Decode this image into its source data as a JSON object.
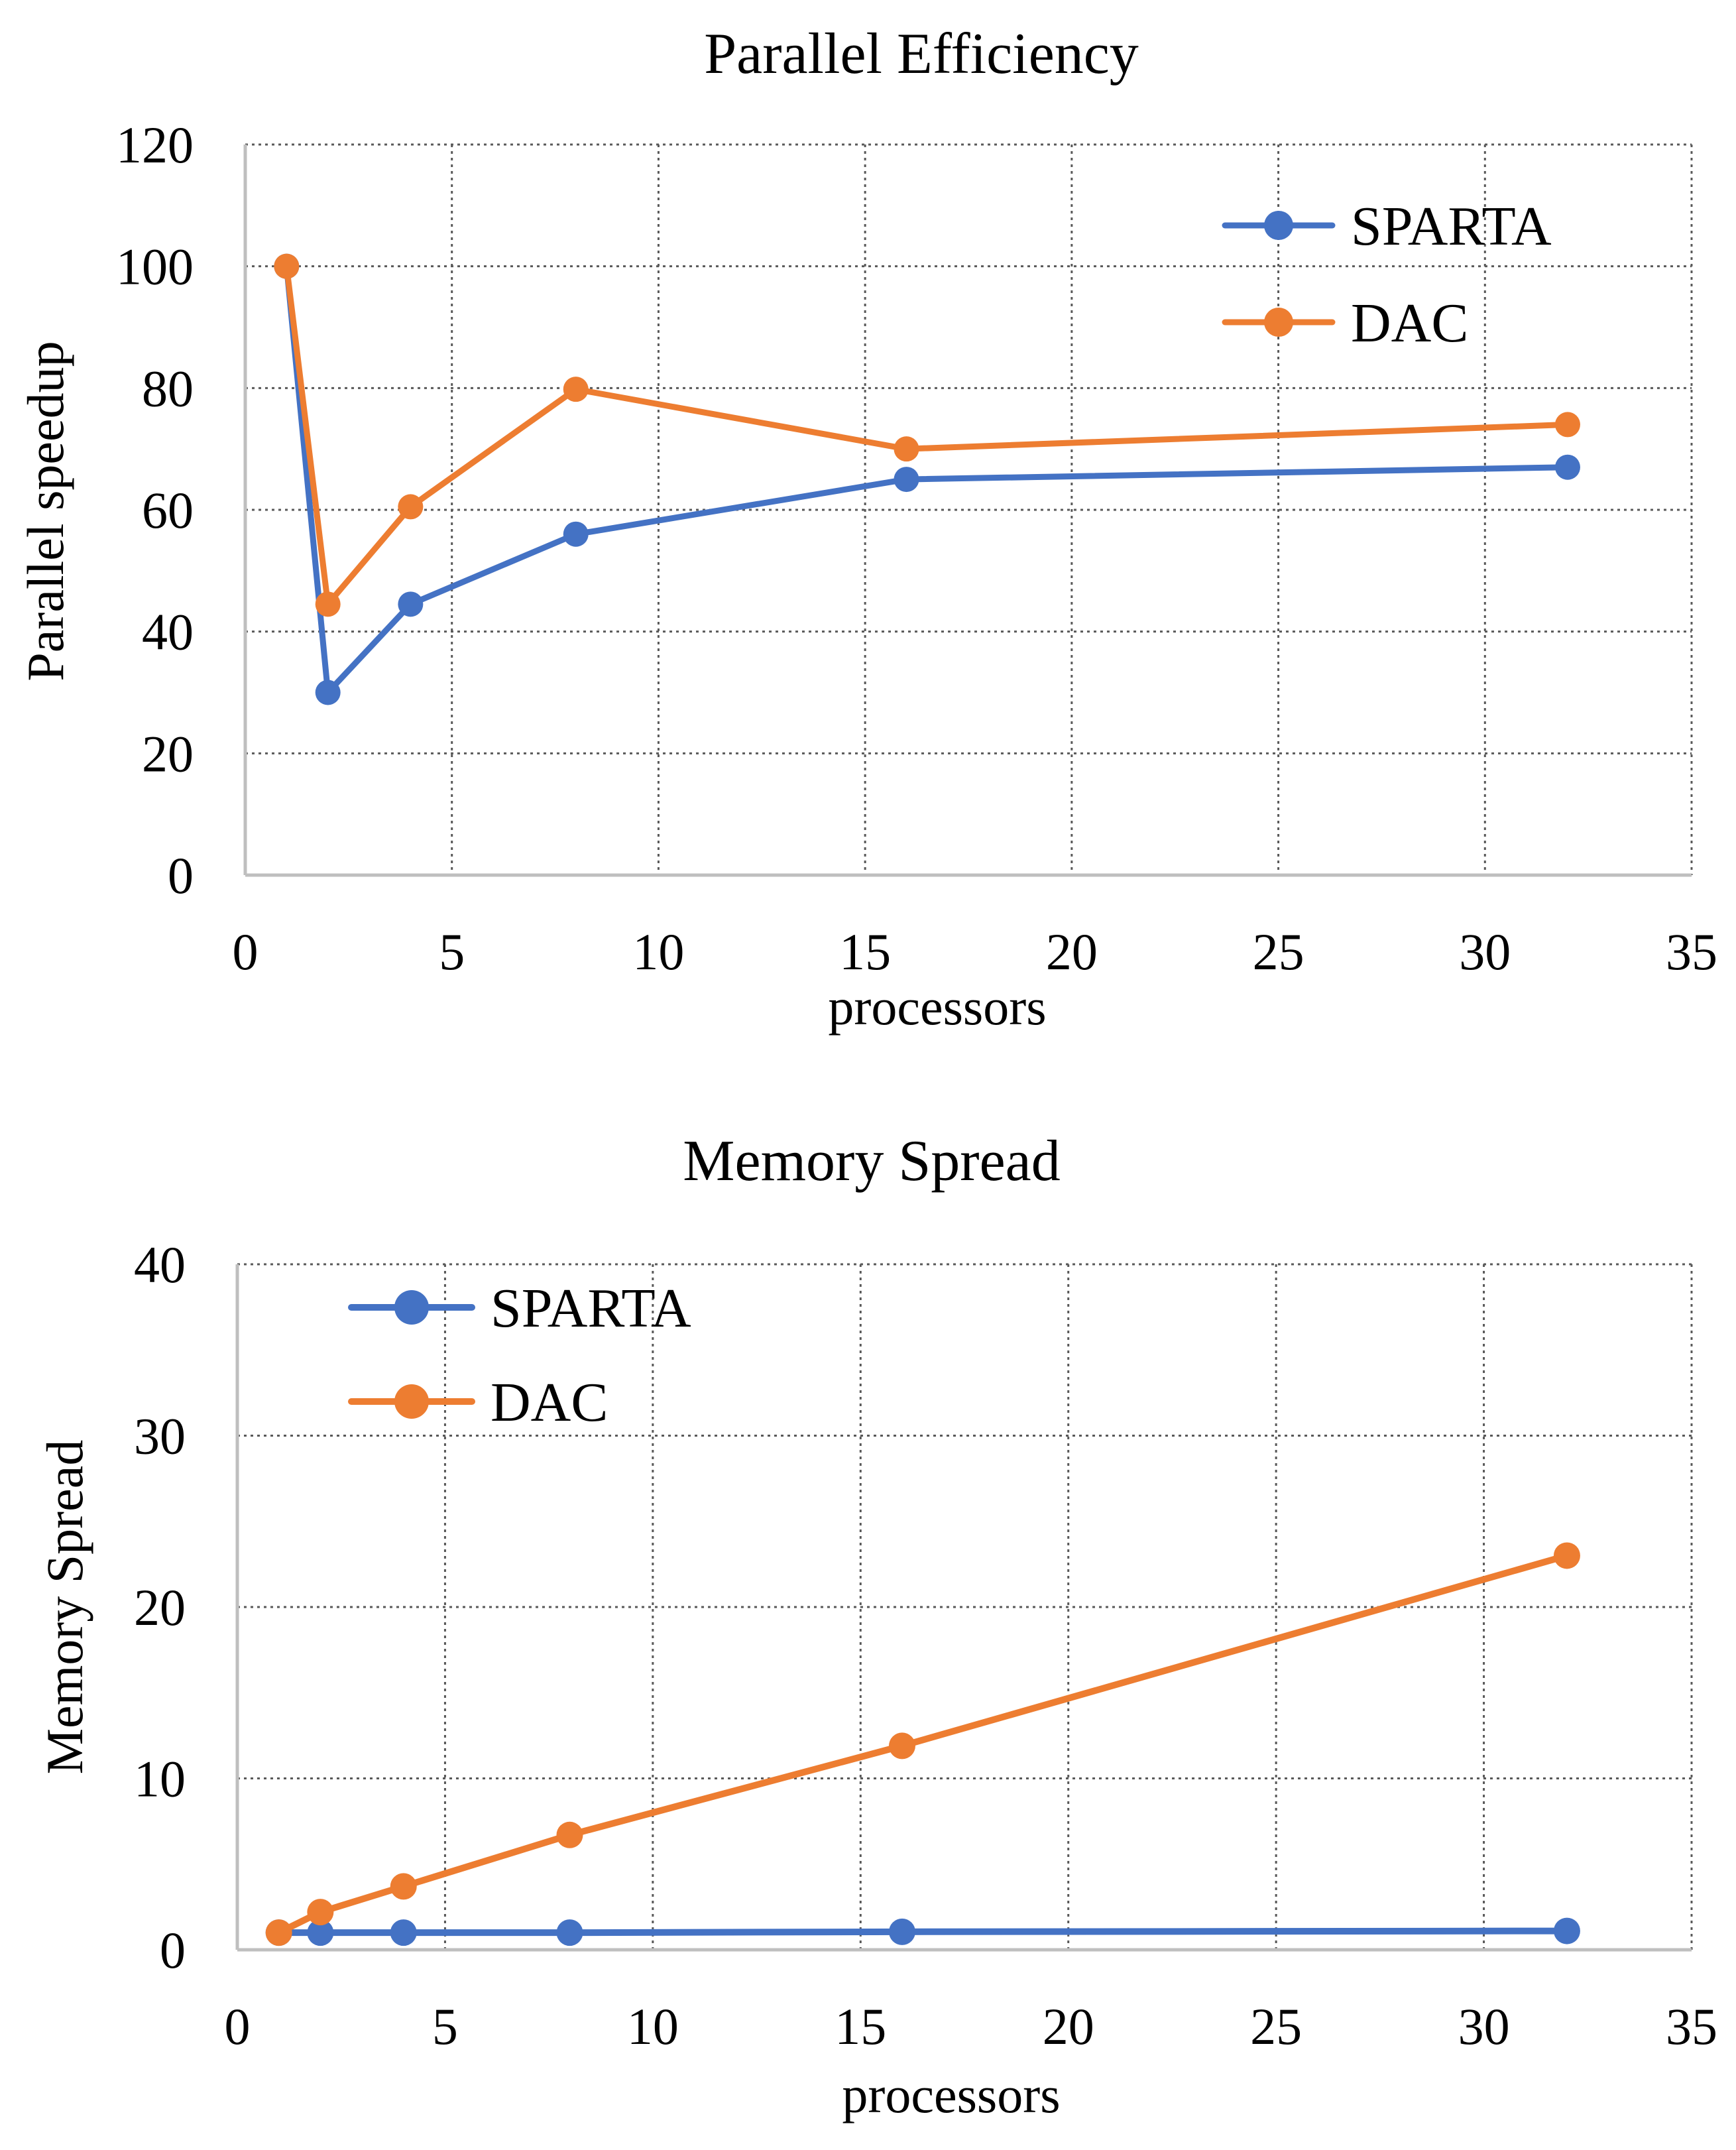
{
  "chart_data": [
    {
      "type": "line",
      "title": "Parallel Efficiency",
      "xlabel": "processors",
      "ylabel": "Parallel speedup",
      "xlim": [
        0,
        35
      ],
      "ylim": [
        0,
        120
      ],
      "xticks": [
        0,
        5,
        10,
        15,
        20,
        25,
        30,
        35
      ],
      "yticks": [
        0,
        20,
        40,
        60,
        80,
        100,
        120
      ],
      "grid": true,
      "legend_position": "top-right",
      "series": [
        {
          "name": "SPARTA",
          "color": "#4472C4",
          "x": [
            1,
            2,
            4,
            8,
            16,
            32
          ],
          "y": [
            100,
            30,
            44.5,
            56,
            65,
            67
          ]
        },
        {
          "name": "DAC",
          "color": "#ED7D31",
          "x": [
            1,
            2,
            4,
            8,
            16,
            32
          ],
          "y": [
            100,
            44.5,
            60.5,
            79.8,
            70,
            74
          ]
        }
      ]
    },
    {
      "type": "line",
      "title": "Memory Spread",
      "xlabel": "processors",
      "ylabel": "Memory Spread",
      "xlim": [
        0,
        35
      ],
      "ylim": [
        0,
        40
      ],
      "xticks": [
        0,
        5,
        10,
        15,
        20,
        25,
        30,
        35
      ],
      "yticks": [
        0,
        10,
        20,
        30,
        40
      ],
      "grid": true,
      "legend_position": "top-left",
      "series": [
        {
          "name": "SPARTA",
          "color": "#4472C4",
          "x": [
            1,
            2,
            4,
            8,
            16,
            32
          ],
          "y": [
            1.0,
            1.0,
            1.0,
            1.0,
            1.05,
            1.1
          ]
        },
        {
          "name": "DAC",
          "color": "#ED7D31",
          "x": [
            1,
            2,
            4,
            8,
            16,
            32
          ],
          "y": [
            1.0,
            2.2,
            3.7,
            6.7,
            11.9,
            23
          ]
        }
      ]
    }
  ]
}
